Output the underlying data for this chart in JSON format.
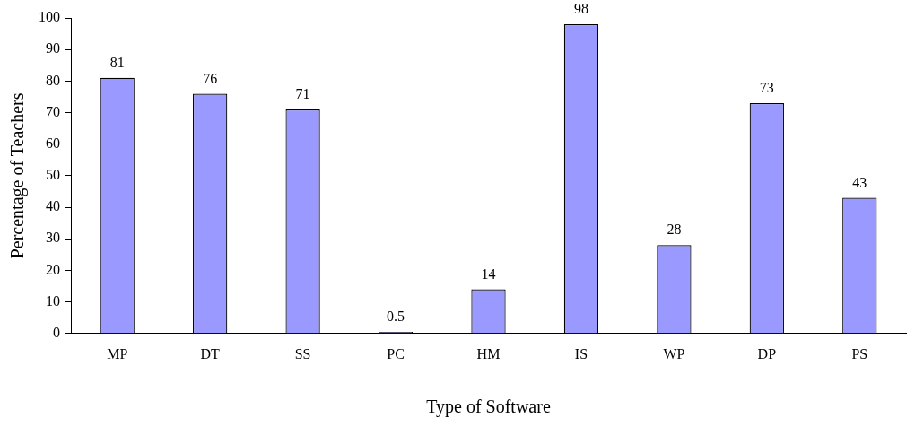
{
  "chart_data": {
    "type": "bar",
    "xlabel": "Type of Software",
    "ylabel": "Percentage of Teachers",
    "categories": [
      "MP",
      "DT",
      "SS",
      "PC",
      "HM",
      "IS",
      "WP",
      "DP",
      "PS"
    ],
    "values": [
      81,
      76,
      71,
      0.5,
      14,
      98,
      28,
      73,
      43
    ],
    "color": "#9999ff",
    "ylim": [
      0,
      100
    ],
    "yticks": [
      0,
      10,
      20,
      30,
      40,
      50,
      60,
      70,
      80,
      90,
      100
    ],
    "grid": false,
    "legend": false,
    "data_labels": true
  }
}
